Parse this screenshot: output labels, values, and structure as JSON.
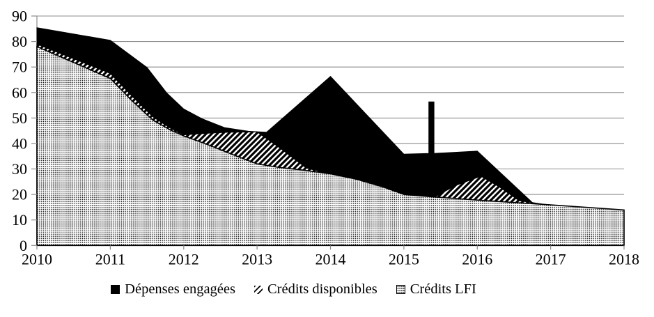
{
  "colors": {
    "area_fill": "#000000",
    "outline": "#000000",
    "grid": "#8c8c8c",
    "axis": "#8c8c8c",
    "text": "#000000",
    "background": "#ffffff"
  },
  "chart_data": {
    "type": "area",
    "title": "",
    "xlabel": "",
    "ylabel": "",
    "x": [
      2010,
      2011,
      2012,
      2013,
      2014,
      2015,
      2016,
      2017,
      2018
    ],
    "xlim": [
      2010,
      2018
    ],
    "ylim": [
      0,
      90
    ],
    "yticks": [
      0,
      10,
      20,
      30,
      40,
      50,
      60,
      70,
      80,
      90
    ],
    "grid": "horizontal",
    "legend_position": "bottom",
    "series": [
      {
        "id": "depenses-engagees",
        "name": "Dépenses engagées",
        "pattern": "solid-black",
        "values": [
          85,
          80.5,
          53.5,
          45,
          66,
          36,
          37,
          16,
          14
        ],
        "note": "2017-2018 merged with / hidden behind Crédits LFI; thin spike to 56 at x≈2015.4",
        "outline": [
          [
            2010,
            85.4
          ],
          [
            2011,
            80.5
          ],
          [
            2011.5,
            69.8
          ],
          [
            2011.77,
            59.8
          ],
          [
            2012,
            53.5
          ],
          [
            2012.25,
            49.7
          ],
          [
            2012.56,
            46.2
          ],
          [
            2012.88,
            44.8
          ],
          [
            2013,
            44.6
          ],
          [
            2013.13,
            44.4
          ],
          [
            2014,
            66.3
          ],
          [
            2015,
            35.8
          ],
          [
            2015.34,
            36.1
          ],
          [
            2015.34,
            56.3
          ],
          [
            2015.41,
            56.3
          ],
          [
            2015.41,
            36.1
          ],
          [
            2016,
            37
          ],
          [
            2016.76,
            16.6
          ],
          [
            2017,
            15.9
          ],
          [
            2018,
            13.9
          ]
        ]
      },
      {
        "id": "credits-disponibles",
        "name": "Crédits disponibles",
        "pattern": "diagonal-hatch",
        "values": [
          79,
          67.5,
          43,
          44.5,
          28,
          19.5,
          27,
          16,
          14
        ],
        "note": "hidden behind black area between ≈2014.1 and ≈2015.4; visible bump peaking ≈27 at 2016",
        "outline": [
          [
            2010,
            79
          ],
          [
            2011,
            67.5
          ],
          [
            2011.3,
            58.5
          ],
          [
            2011.58,
            50.5
          ],
          [
            2011.82,
            46
          ],
          [
            2012,
            43.4
          ],
          [
            2012.3,
            44
          ],
          [
            2012.6,
            44.4
          ],
          [
            2013,
            44.6
          ],
          [
            2013.3,
            38.5
          ],
          [
            2013.67,
            30.4
          ],
          [
            2014,
            28
          ],
          [
            2014.08,
            27.4
          ],
          [
            2014.5,
            23.5
          ],
          [
            2015,
            19.3
          ],
          [
            2015.43,
            19.2
          ],
          [
            2015.7,
            23.5
          ],
          [
            2016.05,
            27.2
          ],
          [
            2016.3,
            23
          ],
          [
            2016.57,
            17.6
          ],
          [
            2017,
            15.7
          ],
          [
            2018,
            13.7
          ]
        ]
      },
      {
        "id": "credits-lfi",
        "name": "Crédits LFI",
        "pattern": "dots",
        "values": [
          78,
          65.5,
          43,
          32,
          28,
          20,
          18,
          16,
          14
        ],
        "outline": [
          [
            2010,
            78
          ],
          [
            2011,
            65.5
          ],
          [
            2011.3,
            56.6
          ],
          [
            2011.58,
            49.2
          ],
          [
            2011.82,
            45.3
          ],
          [
            2012,
            43
          ],
          [
            2012.35,
            39.3
          ],
          [
            2012.68,
            35.5
          ],
          [
            2013,
            32
          ],
          [
            2013.3,
            30.6
          ],
          [
            2013.58,
            29.7
          ],
          [
            2014,
            28.1
          ],
          [
            2014.35,
            26
          ],
          [
            2014.72,
            22.9
          ],
          [
            2015,
            20
          ],
          [
            2015.38,
            19.1
          ],
          [
            2016,
            17.8
          ],
          [
            2017,
            15.9
          ],
          [
            2018,
            13.9
          ]
        ]
      }
    ],
    "annotations": [
      {
        "type": "spike",
        "series": "Dépenses engagées",
        "x": 2015.4,
        "value": 56
      }
    ]
  },
  "legend": {
    "items": [
      {
        "label": "Dépenses engagées"
      },
      {
        "label": "Crédits disponibles"
      },
      {
        "label": "Crédits LFI"
      }
    ]
  }
}
